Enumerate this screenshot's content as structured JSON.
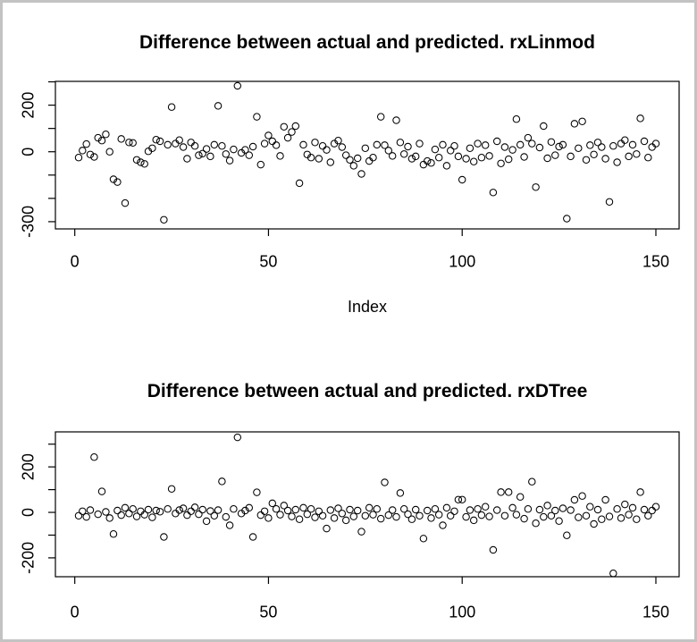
{
  "window": {
    "background": "#ffffff",
    "border_color": "#c3c3c3",
    "text_color": "#000000"
  },
  "chart_data": [
    {
      "type": "scatter",
      "name": "rxlinmod-scatter",
      "title": "Difference between actual and predicted. rxLinmod",
      "xlabel": "Index",
      "ylabel": "",
      "marker": "open-circle",
      "marker_color": "#000000",
      "grid": false,
      "legend": "none",
      "xlim": [
        -5,
        156
      ],
      "ylim": [
        -331,
        302
      ],
      "x_ticks": [
        0,
        50,
        100,
        150
      ],
      "y_ticks": [
        300,
        200,
        100,
        0,
        -100,
        -200,
        -300
      ],
      "y_tick_labels": [
        200,
        0,
        -300
      ],
      "x_rule": "index 1..150",
      "y": [
        -25,
        5,
        33,
        -12,
        -22,
        60,
        48,
        75,
        0,
        -118,
        -130,
        55,
        -220,
        40,
        38,
        -35,
        -45,
        -52,
        2,
        15,
        52,
        45,
        -292,
        30,
        192,
        35,
        50,
        20,
        -30,
        40,
        25,
        -15,
        -8,
        12,
        -20,
        30,
        197,
        25,
        -10,
        -38,
        10,
        283,
        -5,
        8,
        -15,
        22,
        150,
        -55,
        35,
        70,
        45,
        28,
        -18,
        107,
        60,
        85,
        110,
        -135,
        30,
        -12,
        -25,
        40,
        -30,
        25,
        8,
        -45,
        35,
        48,
        20,
        -15,
        -35,
        -60,
        -28,
        -95,
        15,
        -40,
        -25,
        30,
        150,
        28,
        5,
        -18,
        135,
        40,
        -10,
        22,
        -30,
        -20,
        35,
        -55,
        -40,
        -48,
        10,
        -25,
        30,
        -60,
        5,
        25,
        -20,
        -120,
        -30,
        15,
        -42,
        35,
        -25,
        28,
        -18,
        -175,
        45,
        -50,
        20,
        -32,
        8,
        140,
        30,
        -22,
        60,
        35,
        -152,
        18,
        110,
        -28,
        42,
        -15,
        22,
        30,
        -287,
        -20,
        120,
        15,
        130,
        -35,
        28,
        -12,
        40,
        20,
        -30,
        -215,
        25,
        -45,
        35,
        50,
        -20,
        30,
        -10,
        143,
        45,
        -25,
        20,
        35
      ]
    },
    {
      "type": "scatter",
      "name": "rxdtree-scatter",
      "title": "Difference between actual and predicted. rxDTree",
      "xlabel": "",
      "ylabel": "",
      "marker": "open-circle",
      "marker_color": "#000000",
      "grid": false,
      "legend": "none",
      "xlim": [
        -5,
        156
      ],
      "ylim": [
        -283,
        354
      ],
      "x_ticks": [
        0,
        50,
        100,
        150
      ],
      "y_ticks": [
        300,
        200,
        100,
        0,
        -100,
        -200
      ],
      "y_tick_labels": [
        200,
        0,
        -200
      ],
      "x_rule": "index 1..150",
      "y": [
        -15,
        5,
        -20,
        10,
        243,
        -8,
        92,
        2,
        -25,
        -95,
        8,
        -12,
        20,
        -5,
        15,
        -18,
        5,
        -10,
        12,
        -22,
        8,
        3,
        -108,
        15,
        103,
        -5,
        10,
        18,
        -12,
        5,
        22,
        -8,
        12,
        -39,
        6,
        -15,
        10,
        136,
        -20,
        -57,
        15,
        330,
        -5,
        8,
        20,
        -108,
        88,
        -12,
        5,
        -25,
        40,
        15,
        -10,
        30,
        8,
        -18,
        12,
        -30,
        20,
        -8,
        15,
        -22,
        5,
        -15,
        -71,
        10,
        -25,
        18,
        -5,
        -35,
        12,
        -18,
        8,
        -85,
        -15,
        20,
        -10,
        15,
        -28,
        132,
        -12,
        10,
        -20,
        85,
        15,
        -8,
        -30,
        12,
        -15,
        -115,
        8,
        -25,
        15,
        -10,
        -57,
        20,
        -15,
        5,
        56,
        56,
        -20,
        10,
        -35,
        15,
        -12,
        25,
        -18,
        -165,
        10,
        89,
        -15,
        89,
        20,
        -10,
        68,
        -28,
        15,
        135,
        -48,
        12,
        -20,
        30,
        -15,
        8,
        -38,
        18,
        -101,
        10,
        55,
        -22,
        72,
        -15,
        25,
        -51,
        12,
        -30,
        55,
        -18,
        -268,
        15,
        -25,
        35,
        -10,
        20,
        -30,
        89,
        12,
        -15,
        8,
        25
      ]
    }
  ]
}
